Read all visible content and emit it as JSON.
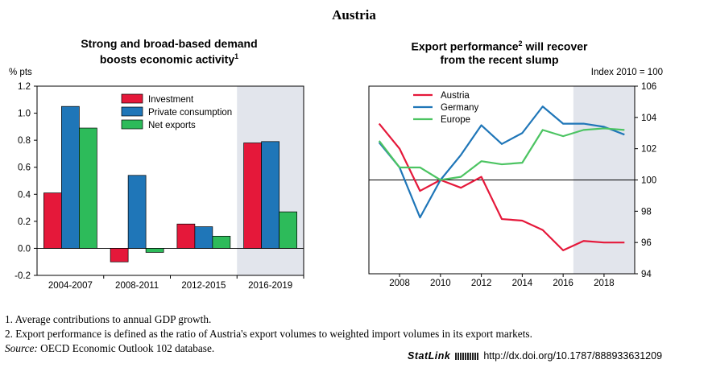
{
  "page_title": "Austria",
  "colors": {
    "investment": "#e5183a",
    "private_consumption": "#1f76b8",
    "net_exports": "#2dbb5a",
    "austria": "#e5183a",
    "germany": "#1f76b8",
    "europe": "#4cc462",
    "shade": "#e2e5ec"
  },
  "chart_data": [
    {
      "type": "bar",
      "title_line1": "Strong and broad-based demand",
      "title_line2": "boosts economic activity",
      "title_sup": "1",
      "unit": "% pts",
      "categories": [
        "2004-2007",
        "2008-2011",
        "2012-2015",
        "2016-2019"
      ],
      "series": [
        {
          "name": "Investment",
          "values": [
            0.41,
            -0.1,
            0.18,
            0.78
          ]
        },
        {
          "name": "Private consumption",
          "values": [
            1.05,
            0.54,
            0.16,
            0.79
          ]
        },
        {
          "name": "Net exports",
          "values": [
            0.89,
            -0.03,
            0.09,
            0.27
          ]
        }
      ],
      "ylim": [
        -0.2,
        1.2
      ],
      "yticks": [
        "-0.2",
        "0.0",
        "0.2",
        "0.4",
        "0.6",
        "0.8",
        "1.0",
        "1.2"
      ],
      "shaded_category": "2016-2019",
      "legend_position": "top-center"
    },
    {
      "type": "line",
      "title_line1": "Export performance",
      "title_sup": "2",
      "title_line1_rest": " will recover",
      "title_line2": "from the recent slump",
      "unit": "Index 2010 = 100",
      "x": [
        2007,
        2008,
        2009,
        2010,
        2011,
        2012,
        2013,
        2014,
        2015,
        2016,
        2017,
        2018,
        2019
      ],
      "series": [
        {
          "name": "Austria",
          "values": [
            103.6,
            102.0,
            99.3,
            100.0,
            99.5,
            100.2,
            97.5,
            97.4,
            96.8,
            95.5,
            96.1,
            96.0,
            96.0
          ]
        },
        {
          "name": "Germany",
          "values": [
            102.4,
            100.8,
            97.6,
            100.0,
            101.6,
            103.5,
            102.3,
            103.0,
            104.7,
            103.6,
            103.6,
            103.4,
            102.9
          ]
        },
        {
          "name": "Europe",
          "values": [
            102.5,
            100.8,
            100.8,
            100.0,
            100.2,
            101.2,
            101.0,
            101.1,
            103.2,
            102.8,
            103.2,
            103.3,
            103.2
          ]
        }
      ],
      "xticks": [
        "2008",
        "2010",
        "2012",
        "2014",
        "2016",
        "2018"
      ],
      "yticks": [
        "94",
        "96",
        "98",
        "100",
        "102",
        "104",
        "106"
      ],
      "ylim": [
        94,
        106
      ],
      "xlim": [
        2006.5,
        2019.5
      ],
      "reference_line": 100,
      "shaded_from": 2016.5,
      "legend_position": "top-left"
    }
  ],
  "footnotes": {
    "note1": "1.  Average contributions to annual GDP growth.",
    "note2": "2.  Export performance is defined as the ratio of Austria's export volumes to weighted import volumes in its export markets.",
    "source_label": "Source:",
    "source_text": "  OECD Economic Outlook 102 database."
  },
  "statlink": {
    "brand": "StatLink",
    "url": "http://dx.doi.org/10.1787/888933631209"
  }
}
